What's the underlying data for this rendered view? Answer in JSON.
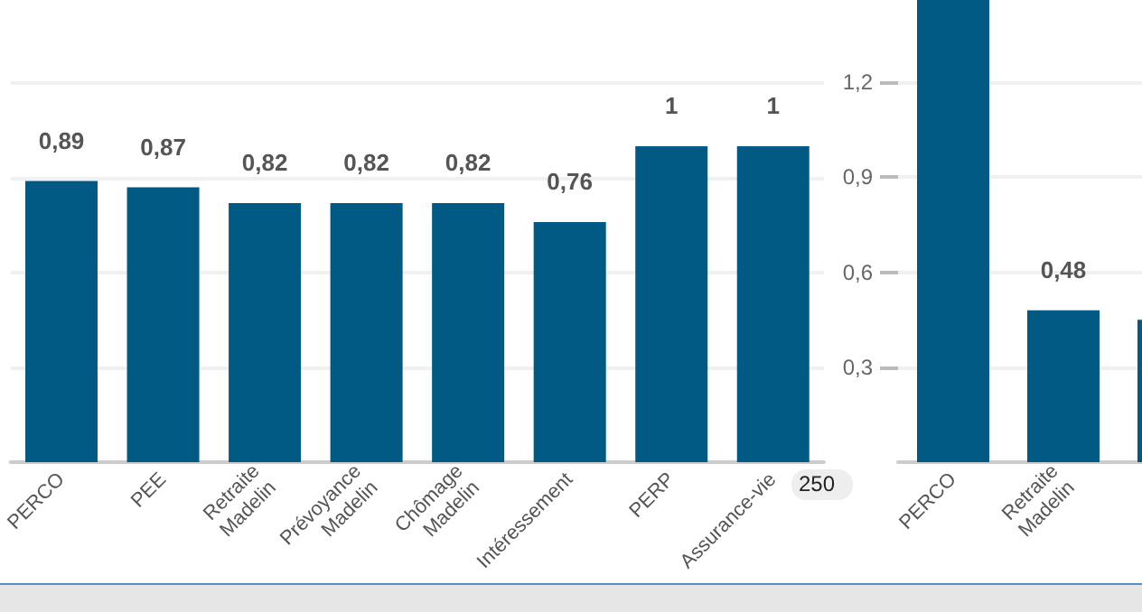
{
  "chart_data": [
    {
      "type": "bar",
      "categories": [
        "PERCO",
        "PEE",
        "Retraite Madelin",
        "Prévoyance Madelin",
        "Chômage Madelin",
        "Intéressement",
        "PERP",
        "Assurance-vie"
      ],
      "series": [
        {
          "color": "#005a84",
          "values": [
            0.89,
            0.87,
            0.82,
            0.82,
            0.82,
            0.76,
            1,
            1
          ],
          "value_labels": [
            "0,89",
            "0,87",
            "0,82",
            "0,82",
            "0,82",
            "0,76",
            "1",
            "1"
          ]
        }
      ],
      "ylim": [
        0,
        1.2
      ],
      "yticks": [
        0,
        0.3,
        0.6,
        0.9,
        1.2
      ],
      "grid": "y",
      "tick_labels": "x",
      "annotations": [
        "250"
      ]
    },
    {
      "type": "bar",
      "categories": [
        "PERCO",
        "Retraite Madelin",
        null
      ],
      "series": [
        {
          "color": "#005a84",
          "values": [
            1.46,
            0.48,
            0.45
          ],
          "value_labels": [
            null,
            "0,48",
            null
          ]
        }
      ],
      "ylim": [
        0,
        1.46
      ],
      "yticks": [
        {
          "value": 0.3,
          "label": "0,3"
        },
        {
          "value": 0.6,
          "label": "0,6"
        },
        {
          "value": 0.9,
          "label": "0,9"
        },
        {
          "value": 1.2,
          "label": "1,2"
        }
      ],
      "grid": "y"
    }
  ]
}
